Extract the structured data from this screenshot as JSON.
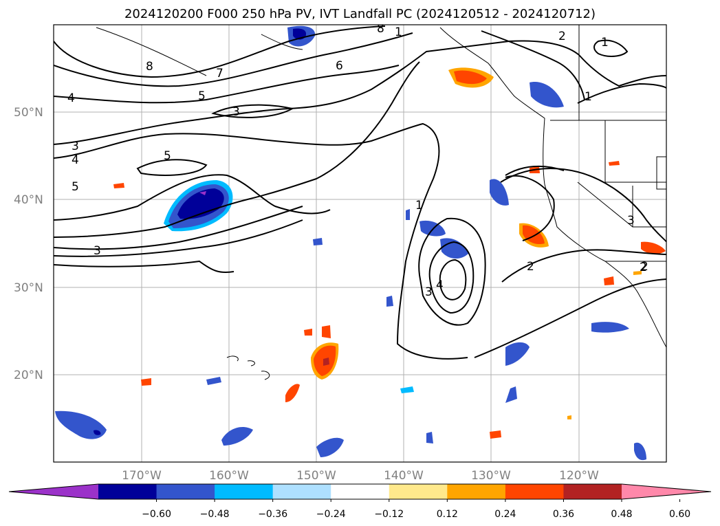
{
  "title": "2024120200 F000 250 hPa PV, IVT Landfall PC (2024120512 - 2024120712)",
  "lat_labels": [
    "50°N",
    "40°N",
    "30°N",
    "20°N"
  ],
  "lon_labels": [
    "170°W",
    "160°W",
    "150°W",
    "140°W",
    "130°W",
    "120°W"
  ],
  "colorbar": {
    "ticks": [
      "−0.60",
      "−0.48",
      "−0.36",
      "−0.24",
      "−0.12",
      "0.12",
      "0.24",
      "0.36",
      "0.48",
      "0.60"
    ],
    "colors": [
      "#9b32c9",
      "#000099",
      "#3355cc",
      "#00bbff",
      "#aee0ff",
      "#ffffff",
      "#ffe98c",
      "#ffa500",
      "#ff4500",
      "#b22222",
      "#ff88aa"
    ]
  },
  "contour_labels": [
    "8",
    "7",
    "6",
    "5",
    "4",
    "3",
    "3",
    "4",
    "5",
    "5",
    "3",
    "2",
    "1",
    "1",
    "2",
    "1",
    "8",
    "1",
    "4",
    "3",
    "2",
    "2",
    "3"
  ]
}
